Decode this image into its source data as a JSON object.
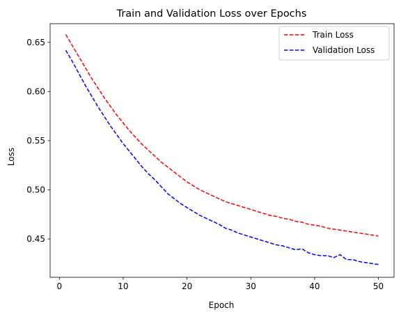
{
  "chart_data": {
    "type": "line",
    "title": "Train and Validation Loss over Epochs",
    "xlabel": "Epoch",
    "ylabel": "Loss",
    "xlim": [
      -1.45,
      52.45
    ],
    "ylim": [
      0.411,
      0.669
    ],
    "xticks": [
      0,
      10,
      20,
      30,
      40,
      50
    ],
    "yticks": [
      0.45,
      0.5,
      0.55,
      0.6,
      0.65
    ],
    "ytick_labels": [
      "0.45",
      "0.50",
      "0.55",
      "0.60",
      "0.65"
    ],
    "grid": false,
    "legend": "top-right",
    "x": [
      1,
      2,
      3,
      4,
      5,
      6,
      7,
      8,
      9,
      10,
      11,
      12,
      13,
      14,
      15,
      16,
      17,
      18,
      19,
      20,
      21,
      22,
      23,
      24,
      25,
      26,
      27,
      28,
      29,
      30,
      31,
      32,
      33,
      34,
      35,
      36,
      37,
      38,
      39,
      40,
      41,
      42,
      43,
      44,
      45,
      46,
      47,
      48,
      49,
      50
    ],
    "series": [
      {
        "name": "Train Loss",
        "color": "#ff0000",
        "values": [
          0.658,
          0.647,
          0.636,
          0.625,
          0.614,
          0.604,
          0.594,
          0.585,
          0.576,
          0.568,
          0.56,
          0.553,
          0.546,
          0.54,
          0.534,
          0.528,
          0.523,
          0.518,
          0.513,
          0.508,
          0.504,
          0.5,
          0.497,
          0.494,
          0.491,
          0.488,
          0.486,
          0.484,
          0.482,
          0.48,
          0.478,
          0.476,
          0.474,
          0.473,
          0.471,
          0.47,
          0.468,
          0.467,
          0.465,
          0.464,
          0.463,
          0.461,
          0.46,
          0.459,
          0.458,
          0.457,
          0.456,
          0.455,
          0.454,
          0.453
        ]
      },
      {
        "name": "Validation Loss",
        "color": "#0000ff",
        "values": [
          0.642,
          0.631,
          0.619,
          0.607,
          0.596,
          0.585,
          0.575,
          0.565,
          0.556,
          0.547,
          0.539,
          0.531,
          0.523,
          0.516,
          0.51,
          0.503,
          0.496,
          0.491,
          0.486,
          0.482,
          0.478,
          0.474,
          0.471,
          0.468,
          0.465,
          0.461,
          0.459,
          0.456,
          0.454,
          0.452,
          0.45,
          0.448,
          0.446,
          0.444,
          0.443,
          0.441,
          0.439,
          0.44,
          0.436,
          0.434,
          0.433,
          0.433,
          0.431,
          0.434,
          0.429,
          0.429,
          0.427,
          0.426,
          0.425,
          0.424
        ]
      }
    ]
  }
}
